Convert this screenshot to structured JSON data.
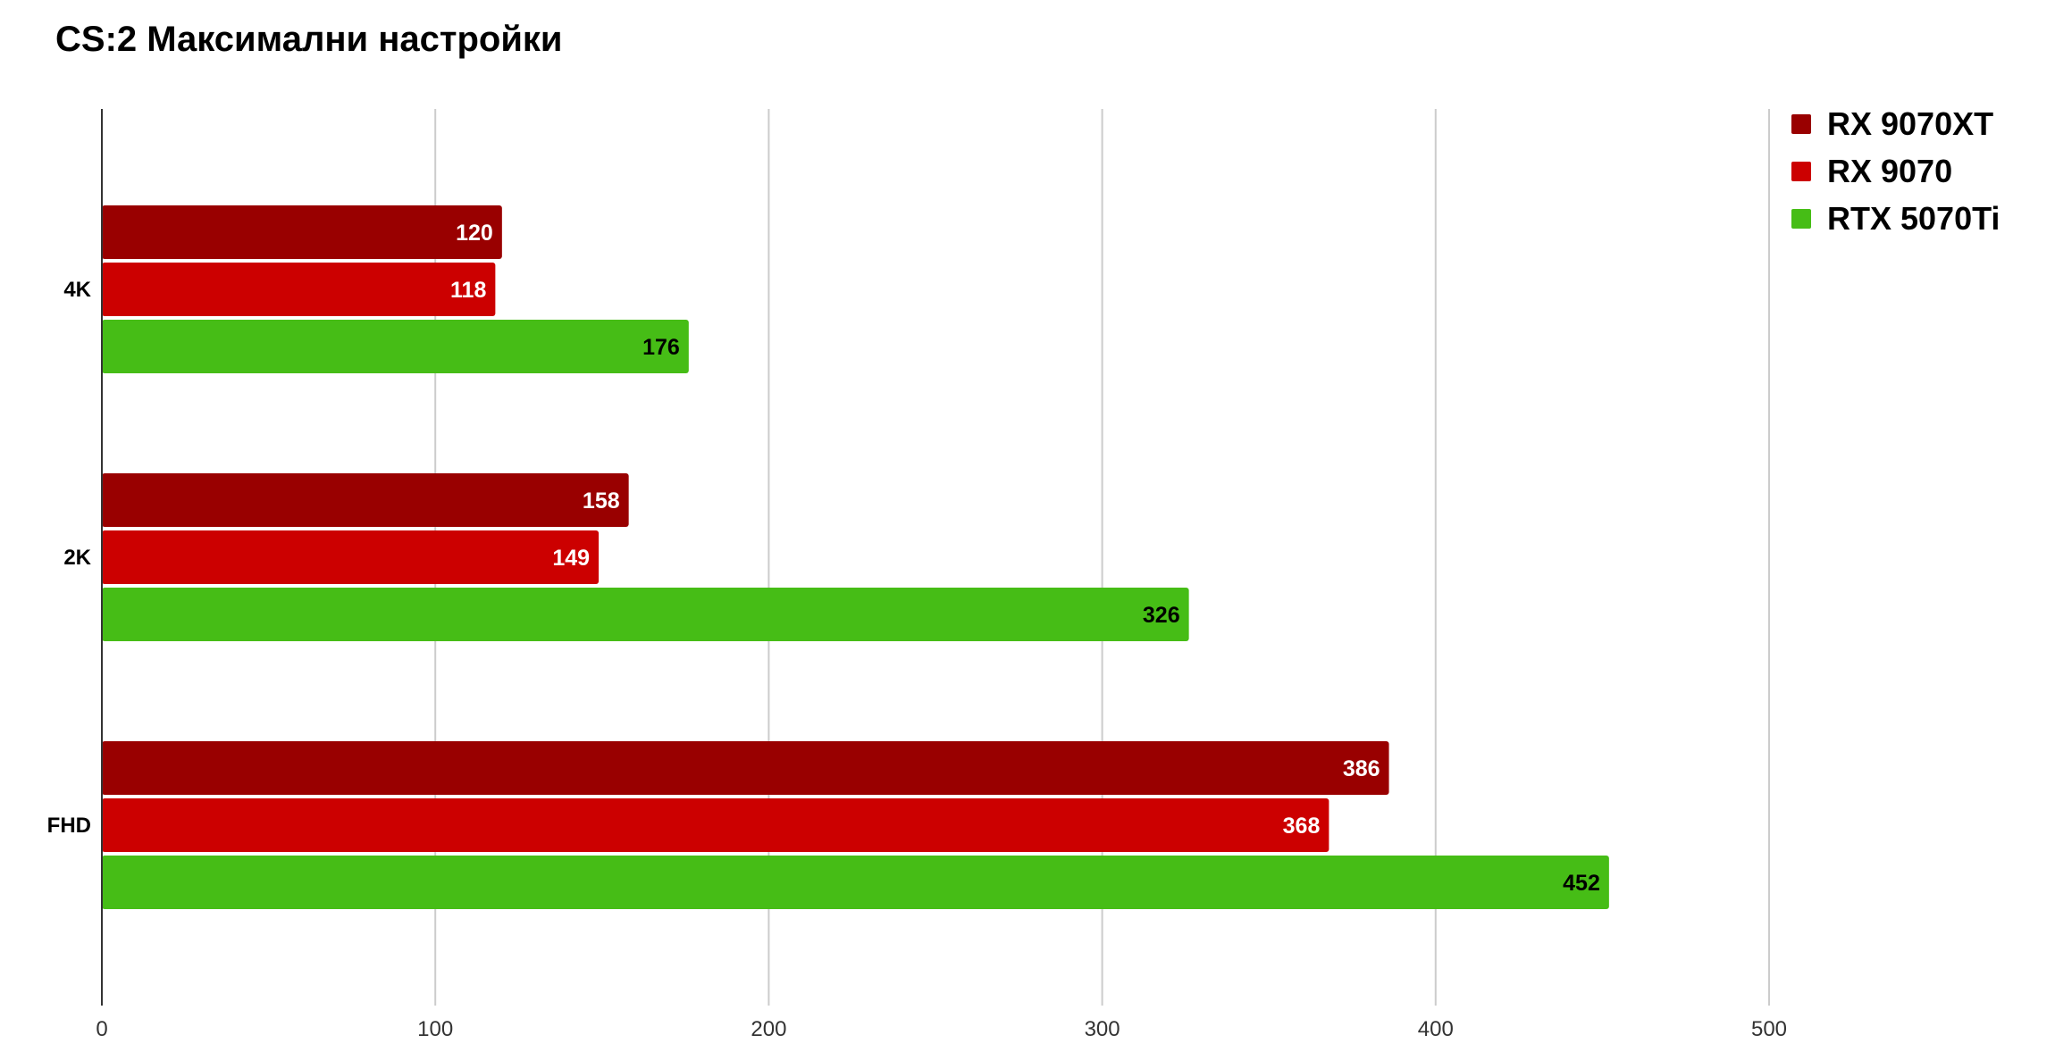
{
  "chart_data": {
    "type": "bar",
    "orientation": "horizontal",
    "title": "CS:2 Максимални настройки",
    "categories": [
      "4K",
      "2K",
      "FHD"
    ],
    "series": [
      {
        "name": "RX 9070XT",
        "color": "#990000",
        "label_color": "#ffffff",
        "values": [
          120,
          158,
          386
        ]
      },
      {
        "name": "RX 9070",
        "color": "#cc0000",
        "label_color": "#ffffff",
        "values": [
          118,
          149,
          368
        ]
      },
      {
        "name": "RTX 5070Ti",
        "color": "#46bd16",
        "label_color": "#000000",
        "values": [
          176,
          326,
          452
        ]
      }
    ],
    "xlim": [
      0,
      500
    ],
    "xticks": [
      0,
      100,
      200,
      300,
      400,
      500
    ],
    "grid": true,
    "legend_position": "top-right"
  }
}
